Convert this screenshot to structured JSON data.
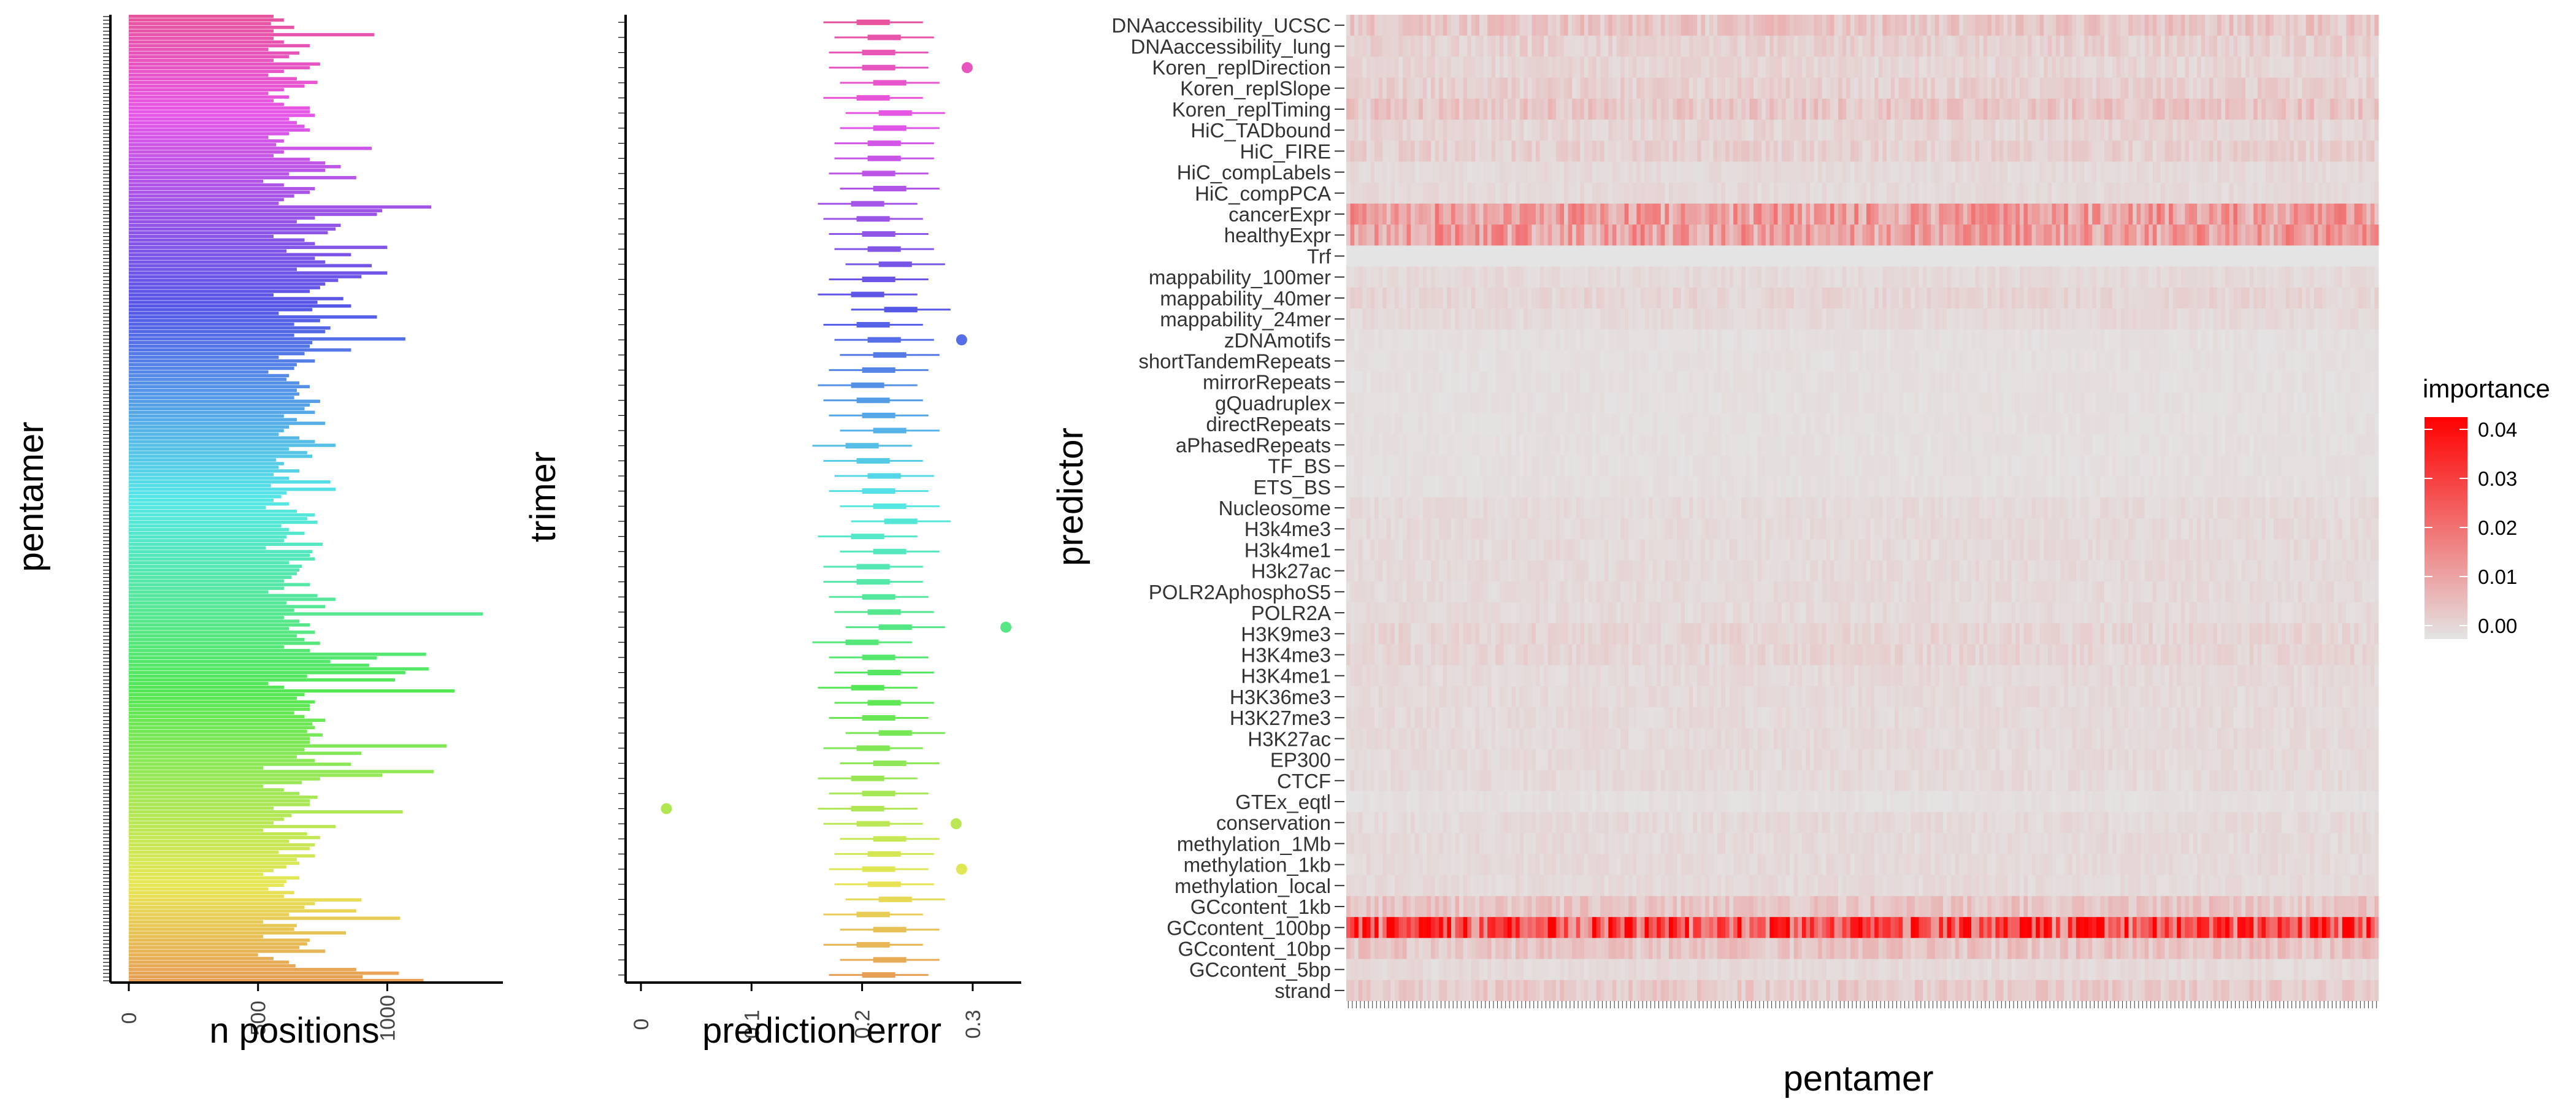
{
  "chart_data": [
    {
      "type": "bar",
      "panel": "n positions by pentamer",
      "xlabel": "n positions",
      "ylabel": "pentamer",
      "xlim": [
        0,
        1400
      ],
      "xticks": [
        0,
        500,
        1000
      ],
      "n_categories": 256,
      "category_axis_note": "256 pentamer labels along y axis, densely overlapping (illegible)",
      "series_color_scale": "hue rainbow from orange (bottom) through green, cyan, blue, purple to pink (top)",
      "values": [
        1140,
        905,
        1045,
        880,
        645,
        620,
        560,
        500,
        760,
        660,
        690,
        700,
        520,
        840,
        640,
        650,
        520,
        1050,
        620,
        880,
        680,
        720,
        900,
        600,
        640,
        540,
        600,
        610,
        660,
        520,
        560,
        610,
        660,
        650,
        720,
        580,
        700,
        720,
        620,
        740,
        690,
        520,
        800,
        560,
        600,
        630,
        1060,
        560,
        700,
        700,
        730,
        660,
        600,
        520,
        670,
        740,
        980,
        1180,
        520,
        860,
        720,
        650,
        900,
        680,
        1230,
        700,
        700,
        750,
        690,
        720,
        710,
        760,
        680,
        640,
        700,
        700,
        720,
        650,
        680,
        1260,
        600,
        540,
        1030,
        690,
        1070,
        1160,
        930,
        780,
        960,
        1150,
        700,
        600,
        740,
        680,
        650,
        720,
        620,
        700,
        660,
        600,
        1370,
        640,
        760,
        610,
        800,
        730,
        540,
        600,
        700,
        600,
        630,
        650,
        660,
        670,
        620,
        720,
        700,
        710,
        530,
        750,
        600,
        610,
        680,
        620,
        590,
        730,
        690,
        720,
        650,
        530,
        620,
        560,
        590,
        610,
        800,
        550,
        780,
        620,
        560,
        660,
        580,
        600,
        570,
        710,
        690,
        620,
        800,
        720,
        660,
        580,
        600,
        620,
        760,
        650,
        600,
        720,
        680,
        700,
        740,
        640,
        660,
        650,
        700,
        660,
        610,
        620,
        540,
        640,
        650,
        720,
        580,
        680,
        860,
        700,
        710,
        1070,
        640,
        760,
        780,
        640,
        740,
        960,
        580,
        710,
        860,
        730,
        830,
        560,
        700,
        740,
        760,
        810,
        900,
        1000,
        650,
        940,
        760,
        720,
        860,
        610,
        1000,
        720,
        680,
        560,
        770,
        800,
        820,
        650,
        720,
        960,
        980,
        1170,
        580,
        600,
        640,
        700,
        720,
        600,
        520,
        880,
        620,
        760,
        820,
        760,
        700,
        560,
        600,
        940,
        570,
        600,
        540,
        620,
        700,
        680,
        650,
        620,
        720,
        700,
        700,
        600,
        560,
        620,
        540,
        600,
        680,
        730,
        650,
        540,
        600,
        700,
        740,
        560,
        620,
        660,
        540,
        700,
        600,
        560,
        950,
        560,
        640,
        550,
        600,
        560
      ]
    },
    {
      "type": "scatter",
      "panel": "prediction error by trimer",
      "xlabel": "prediction error",
      "ylabel": "trimer",
      "xlim": [
        0.0,
        0.33
      ],
      "xticks": [
        0.0,
        0.1,
        0.2,
        0.3
      ],
      "n_trimers": 64,
      "series_color_scale": "hue rainbow from orange (bottom) to pink (top)",
      "note": "per-trimer pointrange of prediction error: median point with 50% interval; outliers drawn as dots",
      "trimer_medians": [
        0.215,
        0.225,
        0.21,
        0.225,
        0.21,
        0.23,
        0.22,
        0.215,
        0.22,
        0.225,
        0.21,
        0.205,
        0.215,
        0.205,
        0.225,
        0.21,
        0.23,
        0.215,
        0.22,
        0.205,
        0.22,
        0.215,
        0.2,
        0.23,
        0.22,
        0.215,
        0.21,
        0.21,
        0.225,
        0.205,
        0.235,
        0.225,
        0.215,
        0.22,
        0.21,
        0.2,
        0.225,
        0.215,
        0.21,
        0.205,
        0.215,
        0.225,
        0.22,
        0.21,
        0.235,
        0.205,
        0.215,
        0.23,
        0.22,
        0.215,
        0.21,
        0.205,
        0.225,
        0.215,
        0.22,
        0.22,
        0.225,
        0.23,
        0.21,
        0.225,
        0.215,
        0.215,
        0.22,
        0.21
      ],
      "outlier_points": [
        {
          "error": 0.023,
          "trimer_index": 11
        },
        {
          "error": 0.285,
          "trimer_index": 10
        },
        {
          "error": 0.29,
          "trimer_index": 7
        },
        {
          "error": 0.33,
          "trimer_index": 23
        },
        {
          "error": 0.295,
          "trimer_index": 60
        },
        {
          "error": 0.29,
          "trimer_index": 42
        }
      ]
    },
    {
      "type": "heatmap",
      "panel": "predictor importance by pentamer",
      "xlabel": "pentamer",
      "ylabel": "predictor",
      "x_category_count": 256,
      "x_axis_note": "256 pentamer labels, rotated and illegible",
      "predictors": [
        "DNAaccessibility_UCSC",
        "DNAaccessibility_lung",
        "Koren_replDirection",
        "Koren_replSlope",
        "Koren_replTiming",
        "HiC_TADbound",
        "HiC_FIRE",
        "HiC_compLabels",
        "HiC_compPCA",
        "cancerExpr",
        "healthyExpr",
        "Trf",
        "mappability_100mer",
        "mappability_40mer",
        "mappability_24mer",
        "zDNAmotifs",
        "shortTandemRepeats",
        "mirrorRepeats",
        "gQuadruplex",
        "directRepeats",
        "aPhasedRepeats",
        "TF_BS",
        "ETS_BS",
        "Nucleosome",
        "H3k4me3",
        "H3k4me1",
        "H3k27ac",
        "POLR2AphosphoS5",
        "POLR2A",
        "H3K9me3",
        "H3K4me3",
        "H3K4me1",
        "H3K36me3",
        "H3K27me3",
        "H3K27ac",
        "EP300",
        "CTCF",
        "GTEx_eqtl",
        "conservation",
        "methylation_1Mb",
        "methylation_1kb",
        "methylation_local",
        "GCcontent_1kb",
        "GCcontent_100bp",
        "GCcontent_10bp",
        "GCcontent_5bp",
        "strand"
      ],
      "mean_importance": [
        0.006,
        0.004,
        0.003,
        0.004,
        0.006,
        0.003,
        0.004,
        0.002,
        0.002,
        0.014,
        0.014,
        0.0,
        0.002,
        0.003,
        0.002,
        0.001,
        0.001,
        0.001,
        0.001,
        0.001,
        0.001,
        0.001,
        0.001,
        0.002,
        0.002,
        0.002,
        0.002,
        0.002,
        0.002,
        0.003,
        0.003,
        0.002,
        0.002,
        0.002,
        0.002,
        0.002,
        0.002,
        0.001,
        0.002,
        0.002,
        0.002,
        0.002,
        0.006,
        0.03,
        0.006,
        0.002,
        0.005
      ],
      "legend": {
        "title": "importance",
        "ticks": [
          "0.04",
          "0.03",
          "0.02",
          "0.01",
          "0.00"
        ],
        "range": [
          0.0,
          0.045
        ],
        "low_color": "#e4e4e4",
        "high_color": "#ff0000"
      }
    }
  ],
  "labels": {
    "bar_xlabel": "n positions",
    "bar_ylabel": "pentamer",
    "dot_xlabel": "prediction error",
    "dot_ylabel": "trimer",
    "heat_xlabel": "pentamer",
    "heat_ylabel": "predictor",
    "legend_title": "importance"
  }
}
